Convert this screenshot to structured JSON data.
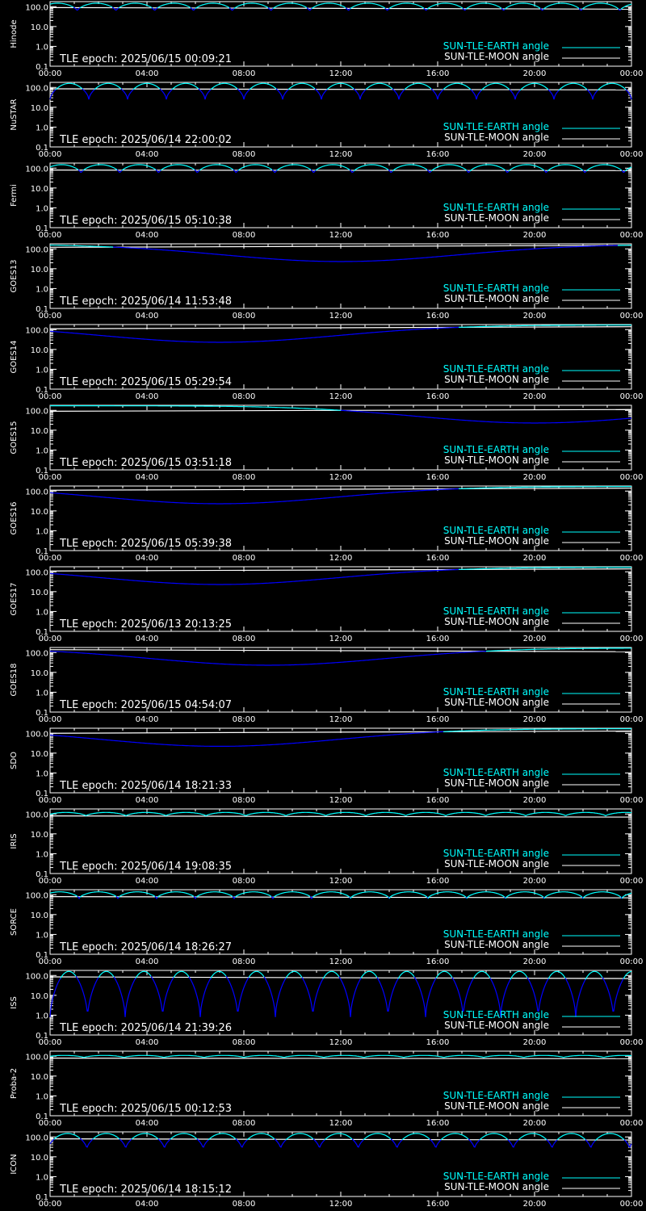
{
  "colors": {
    "background": "#000000",
    "axes": "#ffffff",
    "earth_angle_line": "#00ffff",
    "moon_angle_line": "#ffffff",
    "eclipse_dip_line": "#0000ff"
  },
  "x_tick_labels": [
    "00:00",
    "04:00",
    "08:00",
    "12:00",
    "16:00",
    "20:00",
    "00:00"
  ],
  "y_tick_labels": [
    "100.0",
    "10.0",
    "1.0",
    "0.1"
  ],
  "legend": {
    "earth_label": "SUN-TLE-EARTH angle",
    "moon_label": "SUN-TLE-MOON angle"
  },
  "tle_prefix": "TLE epoch: ",
  "chart_data": [
    {
      "type": "line",
      "satellite": "Hinode",
      "tle_epoch": "2025/06/15 00:09:21",
      "x_hours": [
        0,
        24
      ],
      "ylim": [
        0.1,
        180
      ],
      "y_scale": "log",
      "grid": false,
      "series": [
        {
          "name": "SUN-TLE-EARTH angle",
          "kind": "orbital",
          "period_hours": 1.6,
          "phase": 0.3,
          "max": 150,
          "min": 60
        },
        {
          "name": "SUN-TLE-MOON angle",
          "kind": "linear",
          "start": 90,
          "end": 75
        }
      ]
    },
    {
      "type": "line",
      "satellite": "NuSTAR",
      "tle_epoch": "2025/06/14 22:00:02",
      "x_hours": [
        0,
        24
      ],
      "ylim": [
        0.1,
        180
      ],
      "y_scale": "log",
      "grid": false,
      "series": [
        {
          "name": "SUN-TLE-EARTH angle",
          "kind": "orbital",
          "period_hours": 1.6,
          "phase": 0.0,
          "max": 160,
          "min": 25
        },
        {
          "name": "SUN-TLE-MOON angle",
          "kind": "linear",
          "start": 85,
          "end": 75
        }
      ]
    },
    {
      "type": "line",
      "satellite": "Fermi",
      "tle_epoch": "2025/06/15 05:10:38",
      "x_hours": [
        0,
        24
      ],
      "ylim": [
        0.1,
        180
      ],
      "y_scale": "log",
      "grid": false,
      "series": [
        {
          "name": "SUN-TLE-EARTH angle",
          "kind": "orbital",
          "period_hours": 1.6,
          "phase": 0.2,
          "max": 150,
          "min": 55
        },
        {
          "name": "SUN-TLE-MOON angle",
          "kind": "linear",
          "start": 80,
          "end": 75
        }
      ]
    },
    {
      "type": "line",
      "satellite": "GOES13",
      "tle_epoch": "2025/06/14 11:53:48",
      "x_hours": [
        0,
        24
      ],
      "ylim": [
        0.1,
        180
      ],
      "y_scale": "log",
      "grid": false,
      "series": [
        {
          "name": "SUN-TLE-EARTH angle",
          "kind": "geo",
          "center_hour": 12,
          "max": 170,
          "min": 23,
          "width_hours": 12
        },
        {
          "name": "SUN-TLE-MOON angle",
          "kind": "linear",
          "start": 120,
          "end": 150
        }
      ]
    },
    {
      "type": "line",
      "satellite": "GOES14",
      "tle_epoch": "2025/06/15 05:29:54",
      "x_hours": [
        0,
        24
      ],
      "ylim": [
        0.1,
        180
      ],
      "y_scale": "log",
      "grid": false,
      "series": [
        {
          "name": "SUN-TLE-EARTH angle",
          "kind": "geo",
          "center_hour": 7,
          "max": 170,
          "min": 23,
          "width_hours": 12
        },
        {
          "name": "SUN-TLE-MOON angle",
          "kind": "linear",
          "start": 110,
          "end": 140
        }
      ]
    },
    {
      "type": "line",
      "satellite": "GOES15",
      "tle_epoch": "2025/06/15 03:51:18",
      "x_hours": [
        0,
        24
      ],
      "ylim": [
        0.1,
        180
      ],
      "y_scale": "log",
      "grid": false,
      "series": [
        {
          "name": "SUN-TLE-EARTH angle",
          "kind": "geo",
          "center_hour": 20,
          "max": 170,
          "min": 23,
          "width_hours": 12
        },
        {
          "name": "SUN-TLE-MOON angle",
          "kind": "linear",
          "start": 90,
          "end": 110
        }
      ]
    },
    {
      "type": "line",
      "satellite": "GOES16",
      "tle_epoch": "2025/06/15 05:39:38",
      "x_hours": [
        0,
        24
      ],
      "ylim": [
        0.1,
        180
      ],
      "y_scale": "log",
      "grid": false,
      "series": [
        {
          "name": "SUN-TLE-EARTH angle",
          "kind": "geo",
          "center_hour": 7,
          "max": 170,
          "min": 23,
          "width_hours": 12
        },
        {
          "name": "SUN-TLE-MOON angle",
          "kind": "linear",
          "start": 110,
          "end": 140
        }
      ]
    },
    {
      "type": "line",
      "satellite": "GOES17",
      "tle_epoch": "2025/06/13 20:13:25",
      "x_hours": [
        0,
        24
      ],
      "ylim": [
        0.1,
        180
      ],
      "y_scale": "log",
      "grid": false,
      "series": [
        {
          "name": "SUN-TLE-EARTH angle",
          "kind": "geo",
          "center_hour": 7,
          "max": 170,
          "min": 23,
          "width_hours": 12
        },
        {
          "name": "SUN-TLE-MOON angle",
          "kind": "linear",
          "start": 110,
          "end": 140
        }
      ]
    },
    {
      "type": "line",
      "satellite": "GOES18",
      "tle_epoch": "2025/06/15 04:54:07",
      "x_hours": [
        0,
        24
      ],
      "ylim": [
        0.1,
        180
      ],
      "y_scale": "log",
      "grid": false,
      "series": [
        {
          "name": "SUN-TLE-EARTH angle",
          "kind": "geo",
          "center_hour": 9,
          "max": 170,
          "min": 23,
          "width_hours": 12
        },
        {
          "name": "SUN-TLE-MOON angle",
          "kind": "linear",
          "start": 140,
          "end": 110
        }
      ]
    },
    {
      "type": "line",
      "satellite": "SDO",
      "tle_epoch": "2025/06/14 18:21:33",
      "x_hours": [
        0,
        24
      ],
      "ylim": [
        0.1,
        180
      ],
      "y_scale": "log",
      "grid": false,
      "series": [
        {
          "name": "SUN-TLE-EARTH angle",
          "kind": "geo",
          "center_hour": 7,
          "max": 170,
          "min": 22,
          "width_hours": 12
        },
        {
          "name": "SUN-TLE-MOON angle",
          "kind": "linear",
          "start": 100,
          "end": 130
        }
      ]
    },
    {
      "type": "line",
      "satellite": "IRIS",
      "tle_epoch": "2025/06/14 19:08:35",
      "x_hours": [
        0,
        24
      ],
      "ylim": [
        0.1,
        180
      ],
      "y_scale": "log",
      "grid": false,
      "series": [
        {
          "name": "SUN-TLE-EARTH angle",
          "kind": "orbital",
          "period_hours": 1.65,
          "phase": 0.1,
          "max": 120,
          "min": 80
        },
        {
          "name": "SUN-TLE-MOON angle",
          "kind": "linear",
          "start": 80,
          "end": 70
        }
      ]
    },
    {
      "type": "line",
      "satellite": "SORCE",
      "tle_epoch": "2025/06/14 18:26:27",
      "x_hours": [
        0,
        24
      ],
      "ylim": [
        0.1,
        180
      ],
      "y_scale": "log",
      "grid": false,
      "series": [
        {
          "name": "SUN-TLE-EARTH angle",
          "kind": "orbital",
          "period_hours": 1.6,
          "phase": 0.25,
          "max": 140,
          "min": 65
        },
        {
          "name": "SUN-TLE-MOON angle",
          "kind": "linear",
          "start": 80,
          "end": 70
        }
      ]
    },
    {
      "type": "line",
      "satellite": "ISS",
      "tle_epoch": "2025/06/14 21:39:26",
      "x_hours": [
        0,
        24
      ],
      "ylim": [
        0.1,
        180
      ],
      "y_scale": "log",
      "grid": false,
      "series": [
        {
          "name": "SUN-TLE-EARTH angle",
          "kind": "orbital",
          "period_hours": 1.55,
          "phase": 0.0,
          "max": 160,
          "min": 0.8
        },
        {
          "name": "SUN-TLE-MOON angle",
          "kind": "linear",
          "start": 85,
          "end": 70
        }
      ]
    },
    {
      "type": "line",
      "satellite": "Proba-2",
      "tle_epoch": "2025/06/15 00:12:53",
      "x_hours": [
        0,
        24
      ],
      "ylim": [
        0.1,
        180
      ],
      "y_scale": "log",
      "grid": false,
      "series": [
        {
          "name": "SUN-TLE-EARTH angle",
          "kind": "orbital",
          "period_hours": 1.65,
          "phase": 0.15,
          "max": 110,
          "min": 85
        },
        {
          "name": "SUN-TLE-MOON angle",
          "kind": "linear",
          "start": 80,
          "end": 75
        }
      ]
    },
    {
      "type": "line",
      "satellite": "ICON",
      "tle_epoch": "2025/06/14 18:15:12",
      "x_hours": [
        0,
        24
      ],
      "ylim": [
        0.1,
        180
      ],
      "y_scale": "log",
      "grid": false,
      "series": [
        {
          "name": "SUN-TLE-EARTH angle",
          "kind": "orbital",
          "period_hours": 1.6,
          "phase": 0.05,
          "max": 150,
          "min": 25
        },
        {
          "name": "SUN-TLE-MOON angle",
          "kind": "linear",
          "start": 80,
          "end": 70
        }
      ]
    }
  ]
}
